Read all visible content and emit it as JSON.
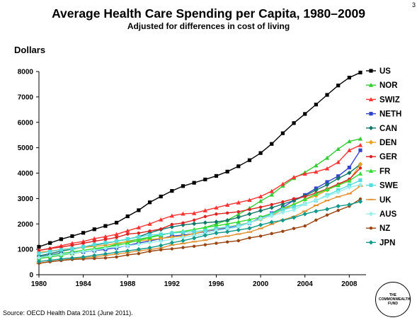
{
  "page_number": "3",
  "source": "Source: OECD Health Data 2011 (June 2011).",
  "logo_text": "THE COMMONWEALTH FUND",
  "chart_data": {
    "type": "line",
    "title": "Average Health Care Spending per Capita, 1980–2009",
    "subtitle": "Adjusted for differences in cost of living",
    "ylabel": "Dollars",
    "xlabel": "",
    "ylim": [
      0,
      8000
    ],
    "xlim": [
      1980,
      2009
    ],
    "yticks": [
      0,
      1000,
      2000,
      3000,
      4000,
      5000,
      6000,
      7000,
      8000
    ],
    "xticks": [
      1980,
      1984,
      1988,
      1992,
      1996,
      2000,
      2004,
      2008
    ],
    "legend_position": "right",
    "grid": false,
    "x": [
      1980,
      1981,
      1982,
      1983,
      1984,
      1985,
      1986,
      1987,
      1988,
      1989,
      1990,
      1991,
      1992,
      1993,
      1994,
      1995,
      1996,
      1997,
      1998,
      1999,
      2000,
      2001,
      2002,
      2003,
      2004,
      2005,
      2006,
      2007,
      2008,
      2009
    ],
    "series": [
      {
        "name": "US",
        "color": "#000000",
        "marker": "square",
        "values": [
          1100,
          1250,
          1400,
          1520,
          1650,
          1790,
          1920,
          2050,
          2300,
          2540,
          2850,
          3080,
          3300,
          3490,
          3620,
          3750,
          3890,
          4060,
          4270,
          4510,
          4790,
          5150,
          5570,
          5970,
          6330,
          6700,
          7080,
          7450,
          7760,
          7960
        ]
      },
      {
        "name": "NOR",
        "color": "#33cc33",
        "marker": "triangle",
        "values": [
          640,
          700,
          770,
          840,
          900,
          970,
          1080,
          1200,
          1320,
          1400,
          1480,
          1580,
          1650,
          1700,
          1780,
          1860,
          2000,
          2150,
          2380,
          2620,
          2900,
          3150,
          3500,
          3800,
          4030,
          4300,
          4600,
          4950,
          5250,
          5350
        ]
      },
      {
        "name": "SWIZ",
        "color": "#ff3333",
        "marker": "triangle",
        "values": [
          950,
          1040,
          1140,
          1240,
          1310,
          1420,
          1500,
          1590,
          1730,
          1860,
          2000,
          2170,
          2320,
          2400,
          2420,
          2530,
          2640,
          2750,
          2840,
          2940,
          3080,
          3290,
          3570,
          3840,
          3970,
          4050,
          4180,
          4430,
          4900,
          5100
        ]
      },
      {
        "name": "NETH",
        "color": "#3344cc",
        "marker": "square",
        "values": [
          700,
          780,
          850,
          870,
          900,
          950,
          1000,
          1060,
          1150,
          1250,
          1330,
          1420,
          1520,
          1560,
          1620,
          1700,
          1780,
          1840,
          1920,
          2030,
          2250,
          2420,
          2650,
          2930,
          3140,
          3400,
          3650,
          3880,
          4220,
          4900
        ]
      },
      {
        "name": "CAN",
        "color": "#11776b",
        "marker": "diamond",
        "values": [
          740,
          830,
          930,
          1010,
          1090,
          1170,
          1240,
          1320,
          1400,
          1500,
          1650,
          1780,
          1880,
          1960,
          2010,
          2050,
          2080,
          2140,
          2260,
          2390,
          2520,
          2640,
          2780,
          2920,
          3100,
          3330,
          3540,
          3790,
          4010,
          4350
        ]
      },
      {
        "name": "DEN",
        "color": "#e8a020",
        "marker": "diamond",
        "values": [
          880,
          930,
          990,
          1040,
          1070,
          1120,
          1160,
          1240,
          1300,
          1330,
          1380,
          1430,
          1480,
          1520,
          1620,
          1720,
          1800,
          1880,
          1960,
          2050,
          2180,
          2330,
          2560,
          2760,
          2960,
          3110,
          3330,
          3530,
          3720,
          4350
        ]
      },
      {
        "name": "GER",
        "color": "#dd2222",
        "marker": "dot",
        "values": [
          960,
          1030,
          1090,
          1160,
          1240,
          1320,
          1390,
          1470,
          1600,
          1640,
          1720,
          1800,
          1980,
          2040,
          2150,
          2290,
          2390,
          2430,
          2480,
          2570,
          2660,
          2760,
          2870,
          2990,
          3070,
          3220,
          3380,
          3570,
          3760,
          4200
        ]
      },
      {
        "name": "FR",
        "color": "#33dd33",
        "marker": "triangle",
        "values": [
          680,
          760,
          830,
          900,
          960,
          1030,
          1090,
          1150,
          1250,
          1350,
          1460,
          1560,
          1650,
          1710,
          1780,
          1860,
          1920,
          2000,
          2080,
          2170,
          2270,
          2410,
          2620,
          2770,
          2970,
          3180,
          3360,
          3520,
          3700,
          3980
        ]
      },
      {
        "name": "SWE",
        "color": "#55dddd",
        "marker": "square",
        "values": [
          840,
          910,
          980,
          1030,
          1100,
          1190,
          1260,
          1320,
          1410,
          1480,
          1560,
          1590,
          1640,
          1670,
          1700,
          1740,
          1820,
          1880,
          1940,
          2050,
          2200,
          2380,
          2560,
          2670,
          2790,
          2920,
          3130,
          3330,
          3520,
          3720
        ]
      },
      {
        "name": "UK",
        "color": "#e09030",
        "marker": "dash",
        "values": [
          450,
          520,
          570,
          620,
          670,
          700,
          760,
          810,
          870,
          940,
          990,
          1050,
          1170,
          1230,
          1300,
          1360,
          1460,
          1520,
          1600,
          1680,
          1820,
          1990,
          2160,
          2290,
          2500,
          2730,
          2920,
          3070,
          3190,
          3490
        ]
      },
      {
        "name": "AUS",
        "color": "#99eeee",
        "marker": "diamond",
        "values": [
          670,
          740,
          800,
          850,
          910,
          960,
          1040,
          1090,
          1140,
          1200,
          1270,
          1320,
          1390,
          1470,
          1540,
          1610,
          1730,
          1810,
          1890,
          2030,
          2210,
          2310,
          2450,
          2550,
          2790,
          2930,
          3090,
          3250,
          3440,
          3540
        ]
      },
      {
        "name": "NZ",
        "color": "#994411",
        "marker": "dot",
        "values": [
          450,
          510,
          560,
          600,
          620,
          640,
          660,
          700,
          780,
          830,
          920,
          980,
          1020,
          1070,
          1120,
          1180,
          1240,
          1290,
          1340,
          1450,
          1520,
          1620,
          1710,
          1820,
          1920,
          2150,
          2350,
          2530,
          2700,
          2980
        ]
      },
      {
        "name": "JPN",
        "color": "#11998b",
        "marker": "diamond",
        "values": [
          520,
          570,
          620,
          660,
          700,
          760,
          820,
          880,
          940,
          1000,
          1060,
          1150,
          1260,
          1340,
          1440,
          1550,
          1640,
          1690,
          1760,
          1830,
          1960,
          2070,
          2140,
          2250,
          2390,
          2500,
          2580,
          2700,
          2760,
          2880
        ]
      }
    ]
  }
}
